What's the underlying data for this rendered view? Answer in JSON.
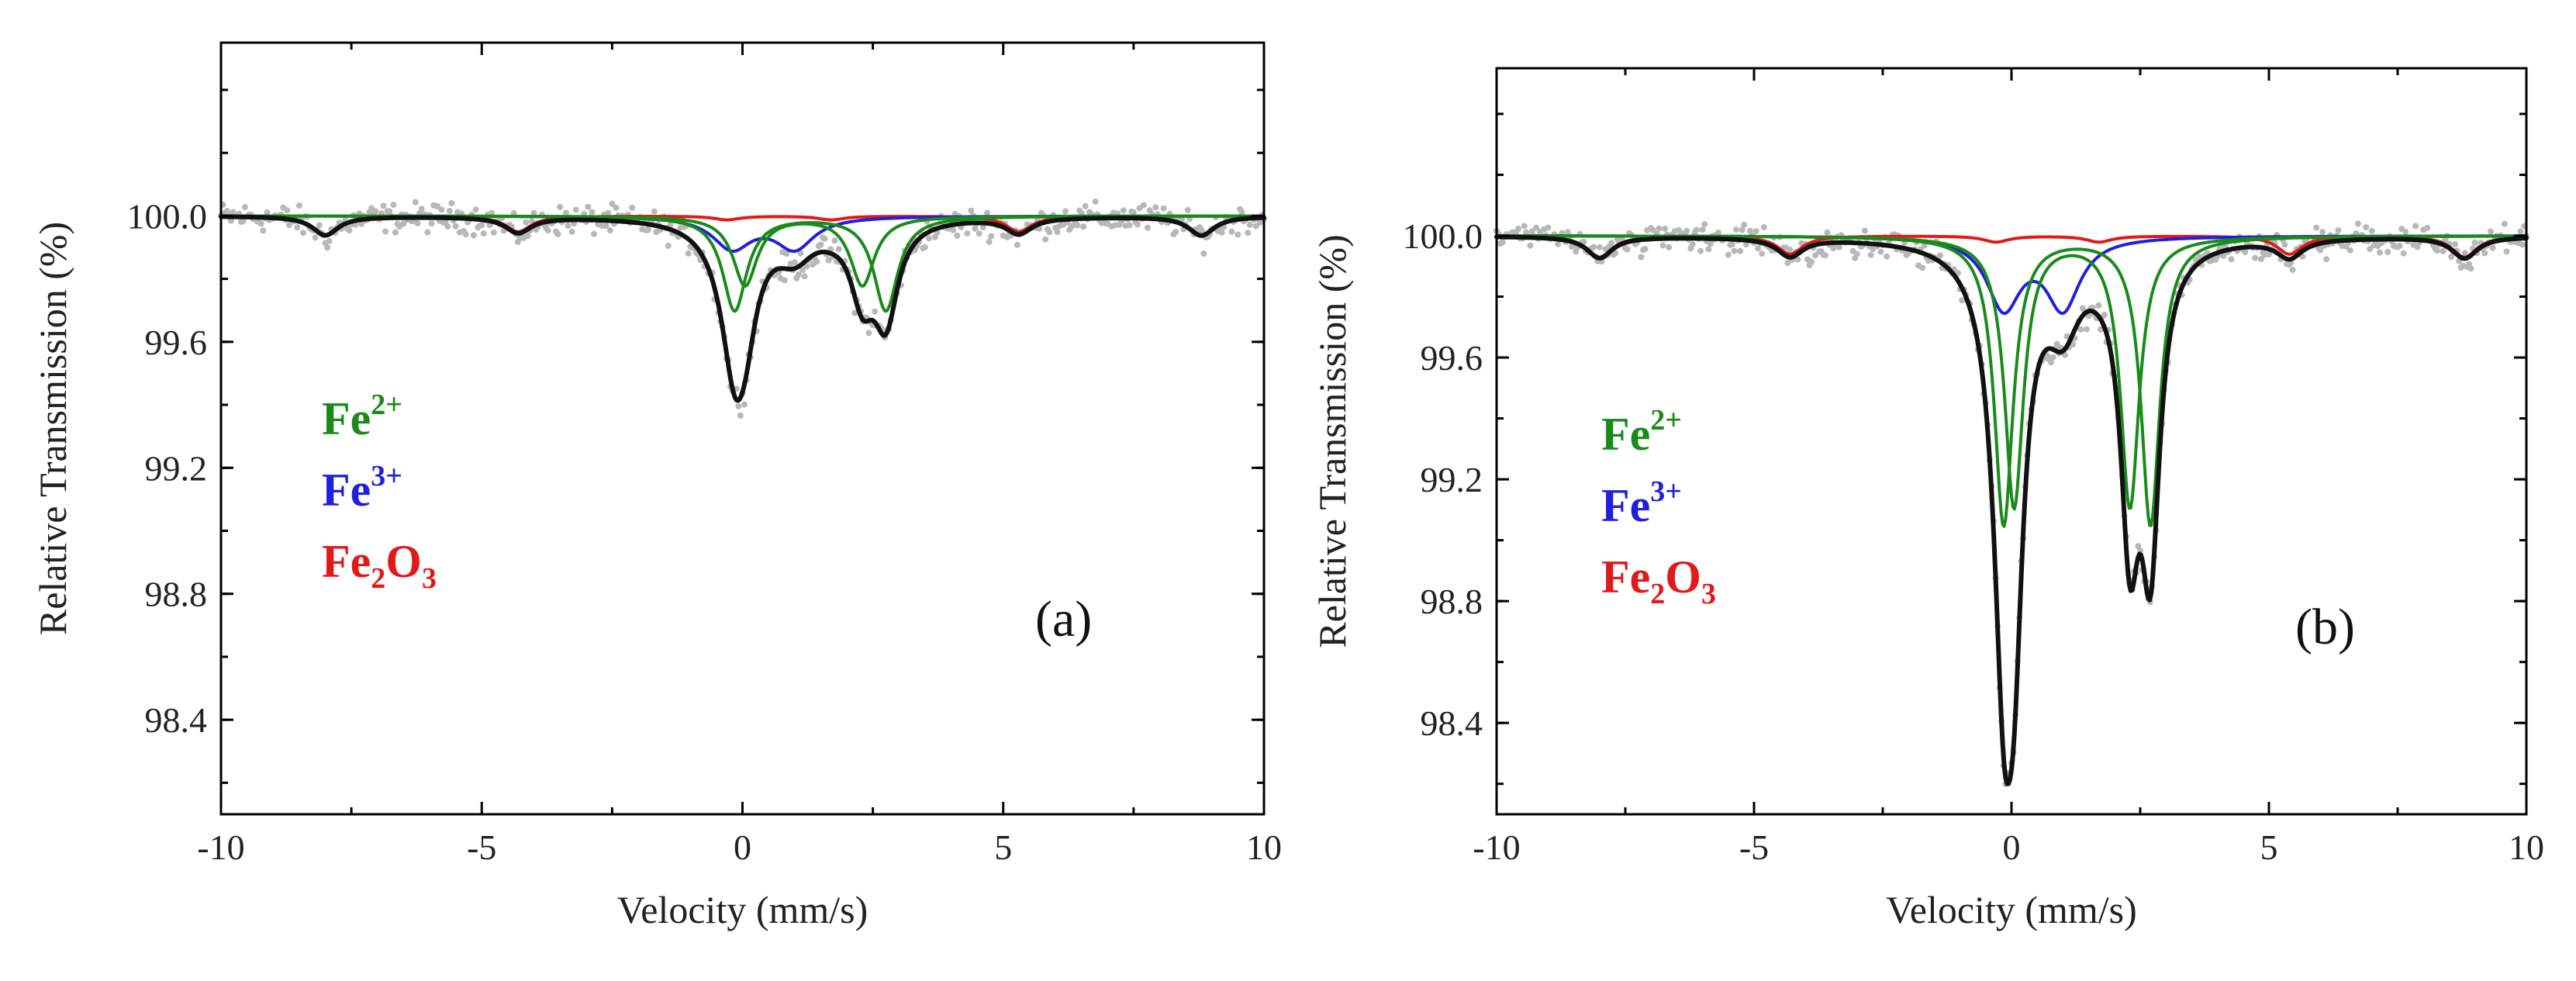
{
  "chart_data": [
    {
      "panel_label": "(a)",
      "type": "line",
      "xlabel": "Velocity (mm/s)",
      "ylabel": "Relative Transmission (%)",
      "xlim": [
        -10,
        10
      ],
      "ylim": [
        98.1,
        100.55
      ],
      "x_ticks": [
        -10,
        -5,
        0,
        5,
        10
      ],
      "x_tick_labels": [
        "-10",
        "-5",
        "0",
        "5",
        "10"
      ],
      "y_ticks": [
        98.4,
        98.8,
        99.2,
        99.6,
        100.0
      ],
      "y_tick_labels": [
        "98.4",
        "98.8",
        "99.2",
        "99.6",
        "100.0"
      ],
      "legend": [
        {
          "base": "Fe",
          "sup": "2+",
          "color": "#1a8a1a"
        },
        {
          "base": "Fe",
          "sup": "3+",
          "color": "#1f1fdd"
        },
        {
          "base": "Fe",
          "sub1": "2",
          "mid": "O",
          "sub2": "3",
          "color": "#e01a1a"
        }
      ],
      "series": [
        {
          "name": "Fe2O3 sextet",
          "color": "#e01a1a",
          "components": [
            {
              "center": -8.0,
              "depth": 0.06,
              "hwhm": 0.3
            },
            {
              "center": -4.3,
              "depth": 0.05,
              "hwhm": 0.3
            },
            {
              "center": -0.3,
              "depth": 0.012,
              "hwhm": 0.3
            },
            {
              "center": 1.7,
              "depth": 0.012,
              "hwhm": 0.3
            },
            {
              "center": 5.3,
              "depth": 0.05,
              "hwhm": 0.3
            },
            {
              "center": 8.8,
              "depth": 0.06,
              "hwhm": 0.3
            }
          ]
        },
        {
          "name": "Fe3+ doublet",
          "color": "#1f1fdd",
          "components": [
            {
              "center": -0.2,
              "depth": 0.1,
              "hwhm": 0.45
            },
            {
              "center": 1.0,
              "depth": 0.1,
              "hwhm": 0.45
            }
          ]
        },
        {
          "name": "Fe2+ doublet 1",
          "color": "#1a8a1a",
          "components": [
            {
              "center": -0.15,
              "depth": 0.3,
              "hwhm": 0.28
            },
            {
              "center": 2.75,
              "depth": 0.3,
              "hwhm": 0.28
            }
          ]
        },
        {
          "name": "Fe2+ doublet 2",
          "color": "#1a8a1a",
          "components": [
            {
              "center": 0.05,
              "depth": 0.22,
              "hwhm": 0.28
            },
            {
              "center": 2.3,
              "depth": 0.22,
              "hwhm": 0.28
            }
          ]
        }
      ]
    },
    {
      "panel_label": "(b)",
      "type": "line",
      "xlabel": "Velocity (mm/s)",
      "ylabel": "Relative Transmission (%)",
      "xlim": [
        -10,
        10
      ],
      "ylim": [
        98.1,
        100.55
      ],
      "x_ticks": [
        -10,
        -5,
        0,
        5,
        10
      ],
      "x_tick_labels": [
        "-10",
        "-5",
        "0",
        "5",
        "10"
      ],
      "y_ticks": [
        98.4,
        98.8,
        99.2,
        99.6,
        100.0
      ],
      "y_tick_labels": [
        "98.4",
        "98.8",
        "99.2",
        "99.6",
        "100.0"
      ],
      "legend": [
        {
          "base": "Fe",
          "sup": "2+",
          "color": "#1a8a1a"
        },
        {
          "base": "Fe",
          "sup": "3+",
          "color": "#1f1fdd"
        },
        {
          "base": "Fe",
          "sub1": "2",
          "mid": "O",
          "sub2": "3",
          "color": "#e01a1a"
        }
      ],
      "series": [
        {
          "name": "Fe2O3 sextet",
          "color": "#e01a1a",
          "components": [
            {
              "center": -8.0,
              "depth": 0.07,
              "hwhm": 0.3
            },
            {
              "center": -4.3,
              "depth": 0.06,
              "hwhm": 0.3
            },
            {
              "center": -0.3,
              "depth": 0.02,
              "hwhm": 0.3
            },
            {
              "center": 1.7,
              "depth": 0.02,
              "hwhm": 0.3
            },
            {
              "center": 5.4,
              "depth": 0.06,
              "hwhm": 0.3
            },
            {
              "center": 8.8,
              "depth": 0.07,
              "hwhm": 0.3
            }
          ]
        },
        {
          "name": "Fe3+ doublet",
          "color": "#1f1fdd",
          "components": [
            {
              "center": -0.15,
              "depth": 0.23,
              "hwhm": 0.4
            },
            {
              "center": 1.0,
              "depth": 0.23,
              "hwhm": 0.4
            }
          ]
        },
        {
          "name": "Fe2+ doublet 1",
          "color": "#1a8a1a",
          "components": [
            {
              "center": -0.15,
              "depth": 0.95,
              "hwhm": 0.22
            },
            {
              "center": 2.7,
              "depth": 0.95,
              "hwhm": 0.22
            }
          ]
        },
        {
          "name": "Fe2+ doublet 2",
          "color": "#1a8a1a",
          "components": [
            {
              "center": 0.05,
              "depth": 0.89,
              "hwhm": 0.22
            },
            {
              "center": 2.3,
              "depth": 0.89,
              "hwhm": 0.22
            }
          ]
        }
      ]
    }
  ]
}
